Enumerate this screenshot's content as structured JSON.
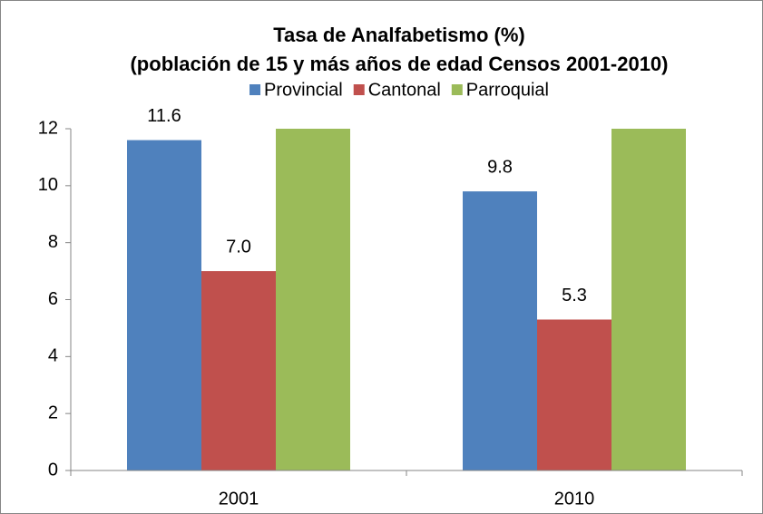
{
  "chart_data": {
    "type": "bar",
    "title": "Tasa de Analfabetismo (%)",
    "subtitle": "(población de 15 y más años de edad Censos 2001-2010)",
    "categories": [
      "2001",
      "2010"
    ],
    "series": [
      {
        "name": "Provincial",
        "color": "#4f81bd",
        "values": [
          11.6,
          9.8
        ],
        "value_labels": [
          "11.6",
          "9.8"
        ]
      },
      {
        "name": "Cantonal",
        "color": "#c0504d",
        "values": [
          7,
          5.3
        ],
        "value_labels": [
          "7.0",
          "5.3"
        ]
      },
      {
        "name": "Parroquial",
        "color": "#9bbb59",
        "values": [
          12,
          12
        ]
      }
    ],
    "ylim": [
      0,
      12
    ],
    "yticks": [
      0,
      2,
      4,
      6,
      8,
      10,
      12
    ],
    "grid": false,
    "legend": "top"
  }
}
